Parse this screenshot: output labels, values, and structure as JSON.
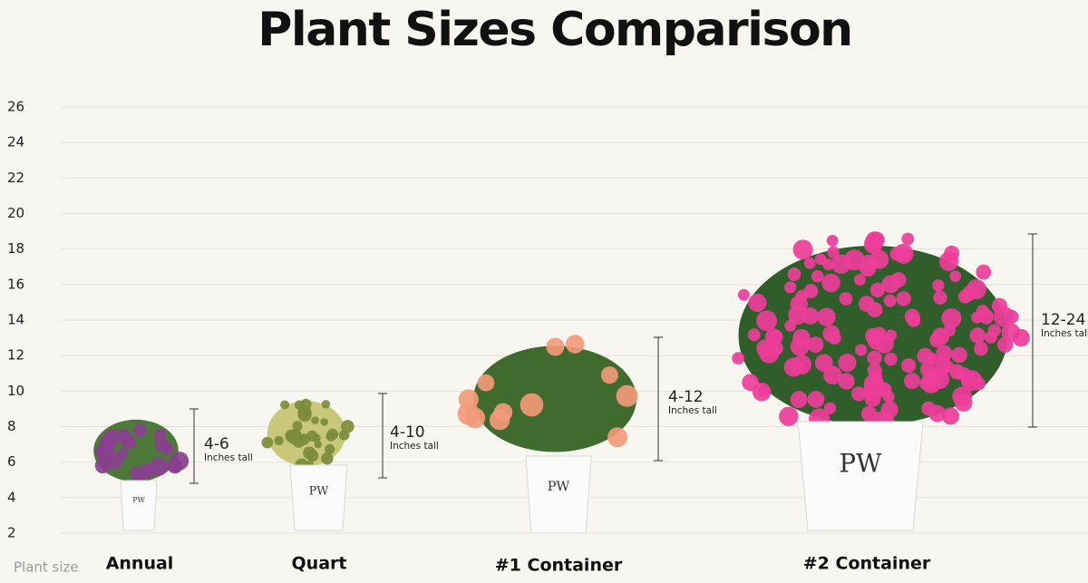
{
  "chart_data": {
    "type": "infographic",
    "title": "Plant Sizes Comparison",
    "ylim": [
      2,
      26
    ],
    "yticks": [
      2,
      4,
      6,
      8,
      10,
      12,
      14,
      16,
      18,
      20,
      22,
      24,
      26
    ],
    "grid": true,
    "x_label": "Plant size",
    "categories": [
      "Annual",
      "Quart",
      "#1 Container",
      "#2 Container"
    ],
    "range_labels": [
      "4-6",
      "4-10",
      "4-12",
      "12-24"
    ],
    "range_note": "Inches tall"
  }
}
